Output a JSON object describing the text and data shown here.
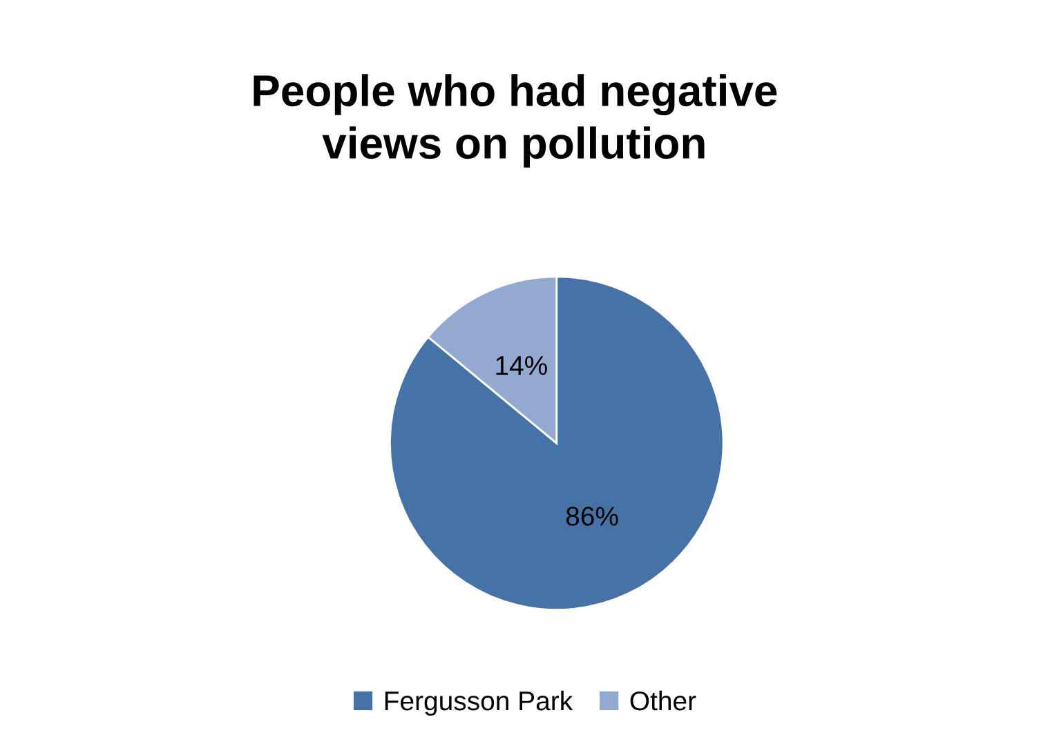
{
  "chart_data": {
    "type": "pie",
    "title": "People who had negative\nviews on pollution",
    "categories": [
      "Fergusson Park",
      "Other"
    ],
    "values": [
      86,
      14
    ],
    "colors": [
      "#4572a7",
      "#94a9d0"
    ],
    "value_labels": [
      "86%",
      "14%"
    ],
    "legend": "bottom"
  }
}
